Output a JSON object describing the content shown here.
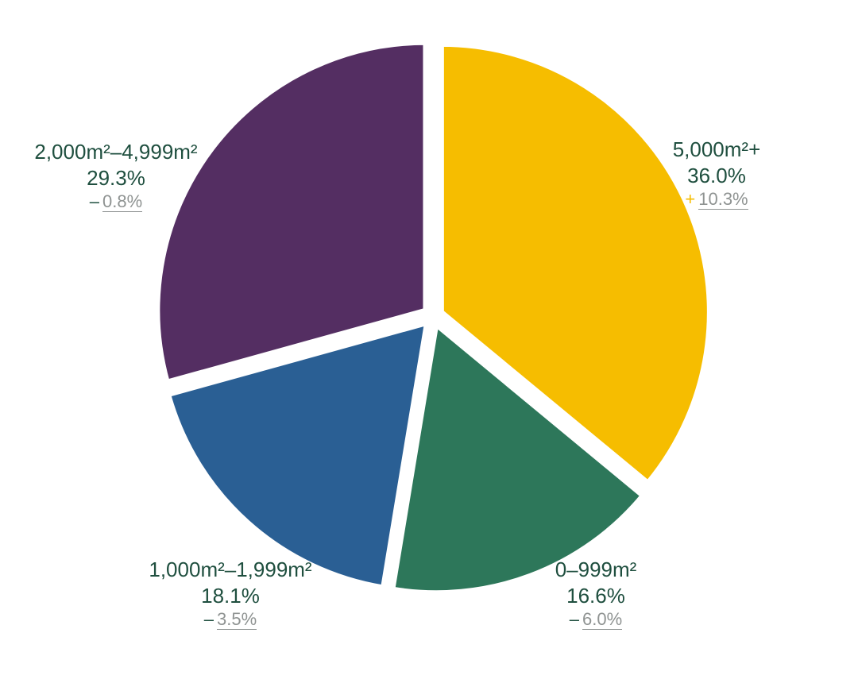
{
  "chart_data": {
    "type": "pie",
    "slices": [
      {
        "key": "5000",
        "label": "5,000m²+",
        "value": 36.0,
        "value_text": "36.0%",
        "change_sign": "+",
        "change_text": "10.3%",
        "color": "#f6bd00",
        "sign_color": "#f6bd00"
      },
      {
        "key": "0",
        "label": "0–999m²",
        "value": 16.6,
        "value_text": "16.6%",
        "change_sign": "–",
        "change_text": "6.0%",
        "color": "#2d775a",
        "sign_color": "#1f4f3f"
      },
      {
        "key": "1000",
        "label": "1,000m²–1,999m²",
        "value": 18.1,
        "value_text": "18.1%",
        "change_sign": "–",
        "change_text": "3.5%",
        "color": "#2a5f94",
        "sign_color": "#1f4f3f"
      },
      {
        "key": "2000",
        "label": "2,000m²–4,999m²",
        "value": 29.3,
        "value_text": "29.3%",
        "change_sign": "–",
        "change_text": "0.8%",
        "color": "#542e62",
        "sign_color": "#1f4f3f"
      }
    ]
  }
}
